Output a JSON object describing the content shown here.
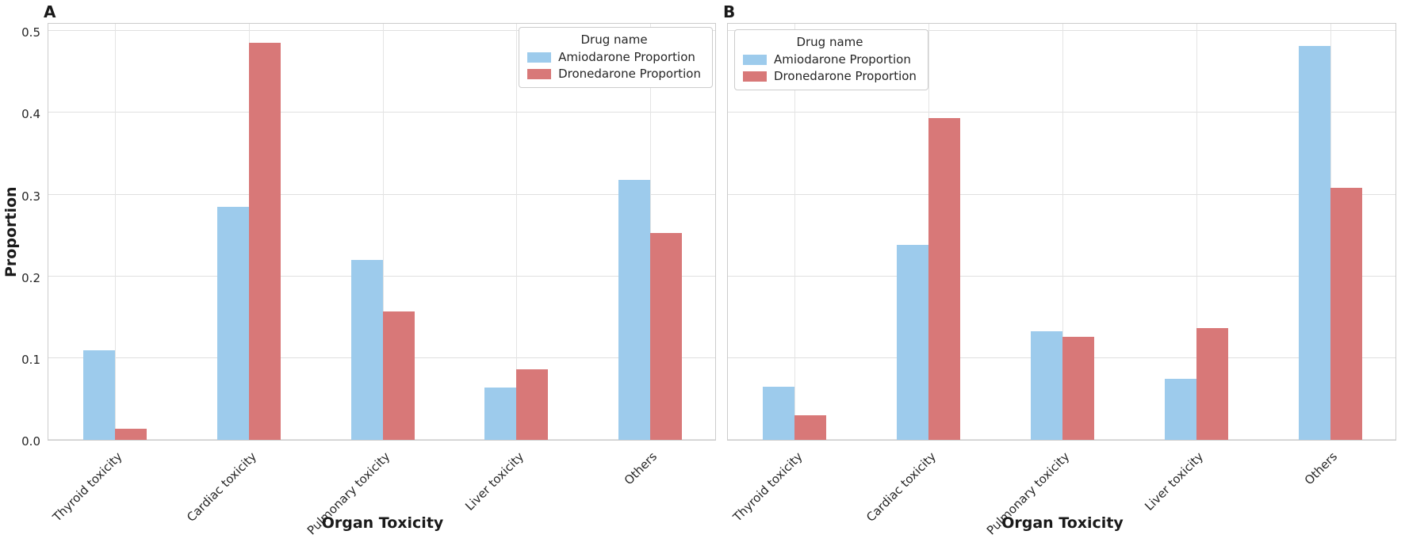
{
  "chart_data": [
    {
      "type": "bar",
      "panel_label": "A",
      "categories": [
        "Thyroid toxicity",
        "Cardiac toxicity",
        "Pulmonary toxicity",
        "Liver toxicity",
        "Others"
      ],
      "series": [
        {
          "name": "Amiodarone Proportion",
          "color": "#9DCBEC",
          "values": [
            0.11,
            0.285,
            0.22,
            0.064,
            0.318
          ]
        },
        {
          "name": "Dronedarone Proportion",
          "color": "#D87878",
          "values": [
            0.014,
            0.486,
            0.157,
            0.086,
            0.253
          ]
        }
      ],
      "xlabel": "Organ Toxicity",
      "ylabel": "Proportion",
      "ylim": [
        0,
        0.511
      ],
      "yticks": [
        "0.0",
        "0.1",
        "0.2",
        "0.3",
        "0.4",
        "0.5"
      ],
      "grid": true,
      "show_y_tick_labels": true,
      "legend": {
        "title": "Drug name",
        "position": "top-right"
      }
    },
    {
      "type": "bar",
      "panel_label": "B",
      "categories": [
        "Thyroid toxicity",
        "Cardiac toxicity",
        "Pulmonary toxicity",
        "Liver toxicity",
        "Others"
      ],
      "series": [
        {
          "name": "Amiodarone Proportion",
          "color": "#9DCBEC",
          "values": [
            0.065,
            0.239,
            0.133,
            0.075,
            0.482
          ]
        },
        {
          "name": "Dronedarone Proportion",
          "color": "#D87878",
          "values": [
            0.03,
            0.394,
            0.126,
            0.137,
            0.308
          ]
        }
      ],
      "xlabel": "Organ Toxicity",
      "ylabel": "",
      "ylim": [
        0,
        0.511
      ],
      "yticks": [
        "0.0",
        "0.1",
        "0.2",
        "0.3",
        "0.4",
        "0.5"
      ],
      "grid": true,
      "show_y_tick_labels": false,
      "legend": {
        "title": "Drug name",
        "position": "top-left"
      }
    }
  ]
}
